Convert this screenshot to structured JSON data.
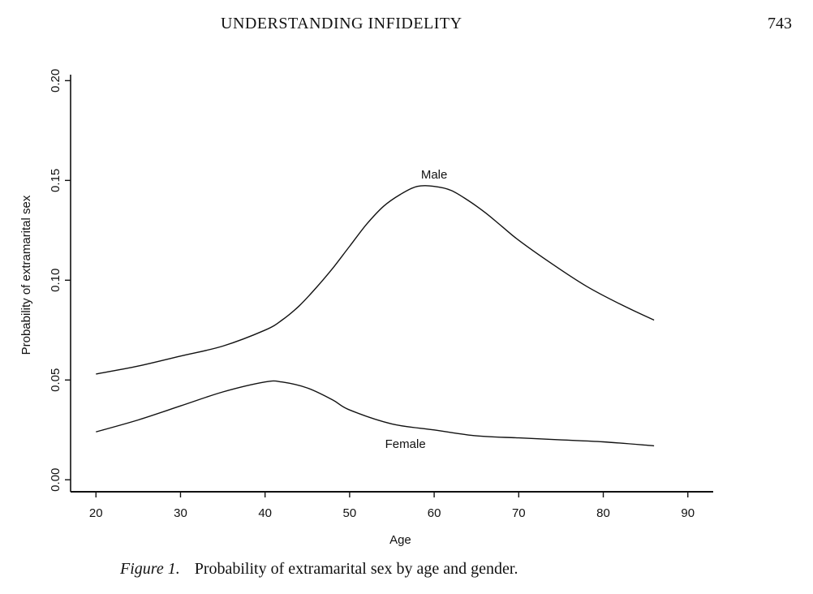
{
  "header": {
    "running_title": "UNDERSTANDING INFIDELITY",
    "page_number": "743"
  },
  "caption": {
    "label": "Figure 1.",
    "text": "Probability of extramarital sex by age and gender."
  },
  "chart_data": {
    "type": "line",
    "xlabel": "Age",
    "ylabel": "Probability of extramarital sex",
    "xlim": [
      17,
      93
    ],
    "ylim": [
      -0.006,
      0.203
    ],
    "x_ticks": [
      "20",
      "30",
      "40",
      "50",
      "60",
      "70",
      "80",
      "90"
    ],
    "y_ticks": [
      "0.00",
      "0.05",
      "0.10",
      "0.15",
      "0.20"
    ],
    "grid": false,
    "legend": "none",
    "series": [
      {
        "name": "Male",
        "x": [
          20,
          25,
          30,
          35,
          40,
          42,
          44,
          46,
          48,
          50,
          52,
          54,
          56,
          58,
          60,
          62,
          64,
          66,
          68,
          70,
          74,
          78,
          82,
          86
        ],
        "y": [
          0.053,
          0.057,
          0.062,
          0.067,
          0.075,
          0.08,
          0.087,
          0.096,
          0.106,
          0.117,
          0.128,
          0.137,
          0.143,
          0.147,
          0.147,
          0.145,
          0.14,
          0.134,
          0.127,
          0.12,
          0.108,
          0.097,
          0.088,
          0.08
        ]
      },
      {
        "name": "Female",
        "x": [
          20,
          25,
          30,
          35,
          40,
          42,
          45,
          48,
          50,
          55,
          60,
          65,
          70,
          75,
          80,
          86
        ],
        "y": [
          0.024,
          0.03,
          0.037,
          0.044,
          0.049,
          0.049,
          0.046,
          0.04,
          0.035,
          0.028,
          0.025,
          0.022,
          0.021,
          0.02,
          0.019,
          0.017
        ]
      }
    ]
  }
}
